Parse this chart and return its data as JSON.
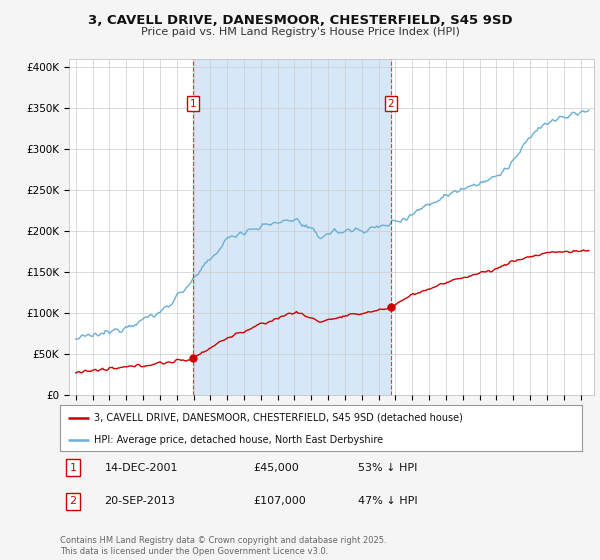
{
  "title": "3, CAVELL DRIVE, DANESMOOR, CHESTERFIELD, S45 9SD",
  "subtitle": "Price paid vs. HM Land Registry's House Price Index (HPI)",
  "ytick_labels": [
    "£0",
    "£50K",
    "£100K",
    "£150K",
    "£200K",
    "£250K",
    "£300K",
    "£350K",
    "£400K"
  ],
  "yticks": [
    0,
    50000,
    100000,
    150000,
    200000,
    250000,
    300000,
    350000,
    400000
  ],
  "ylim": [
    0,
    410000
  ],
  "xlim_left": 1994.6,
  "xlim_right": 2025.8,
  "hpi_color": "#6baed6",
  "price_color": "#cc0000",
  "marker1_x": 2001.96,
  "marker1_y": 45000,
  "marker2_x": 2013.72,
  "marker2_y": 107000,
  "legend1": "3, CAVELL DRIVE, DANESMOOR, CHESTERFIELD, S45 9SD (detached house)",
  "legend2": "HPI: Average price, detached house, North East Derbyshire",
  "ann1_label": "1",
  "ann1_date": "14-DEC-2001",
  "ann1_price": "£45,000",
  "ann1_pct": "53% ↓ HPI",
  "ann2_label": "2",
  "ann2_date": "20-SEP-2013",
  "ann2_price": "£107,000",
  "ann2_pct": "47% ↓ HPI",
  "footer": "Contains HM Land Registry data © Crown copyright and database right 2025.\nThis data is licensed under the Open Government Licence v3.0.",
  "bg_color": "#f5f5f5",
  "plot_bg": "#ffffff",
  "shade_color": "#d6e8f7",
  "vline_color": "#cc0000",
  "seed": 12345
}
